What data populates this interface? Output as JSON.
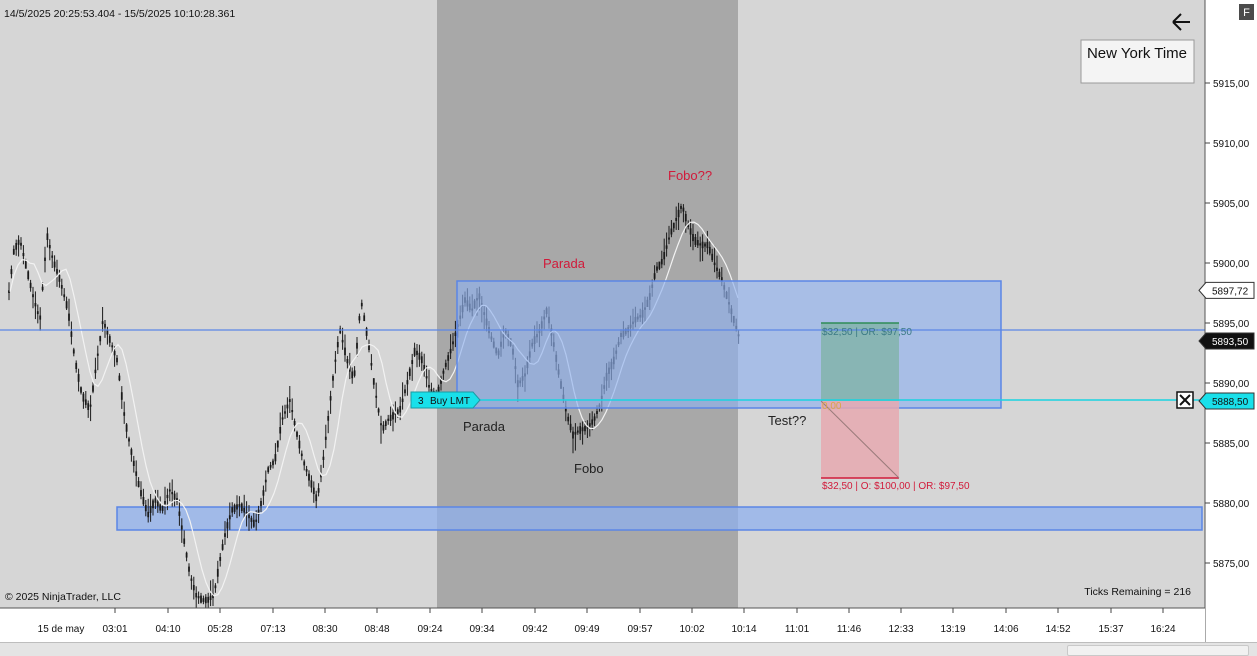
{
  "header": {
    "range_text": "14/5/2025 20:25:53.404 - 15/5/2025 10:10:28.361",
    "timezone_label": "New York Time",
    "panel_button": "F",
    "back_icon": "left-arrow-icon"
  },
  "footer": {
    "copyright": "© 2025 NinjaTrader, LLC",
    "ticks_remaining": "Ticks Remaining = 216"
  },
  "price_axis": {
    "ticks": [
      "5915,00",
      "5910,00",
      "5905,00",
      "5900,00",
      "5895,00",
      "5890,00",
      "5885,00",
      "5880,00",
      "5875,00"
    ],
    "markers": [
      {
        "label": "5897,72",
        "style": "outline",
        "value": 5897.72
      },
      {
        "label": "5893,50",
        "style": "dark",
        "value": 5893.5
      },
      {
        "label": "5888,50",
        "style": "cyan",
        "value": 5888.5
      }
    ]
  },
  "time_axis": {
    "labels": [
      "15 de may",
      "03:01",
      "04:10",
      "05:28",
      "07:13",
      "08:30",
      "08:48",
      "09:24",
      "09:34",
      "09:42",
      "09:49",
      "09:57",
      "10:02",
      "10:14",
      "11:01",
      "11:46",
      "12:33",
      "13:19",
      "14:06",
      "14:52",
      "15:37",
      "16:24"
    ]
  },
  "annotations": [
    {
      "text": "Parada",
      "color": "#d11a3a"
    },
    {
      "text": "Fobo??",
      "color": "#d11a3a"
    },
    {
      "text": "Parada",
      "color": "#222222"
    },
    {
      "text": "Fobo",
      "color": "#222222"
    },
    {
      "text": "Test??",
      "color": "#222222"
    }
  ],
  "order": {
    "quantity": "3",
    "type": "Buy LMT",
    "price": 5888.5
  },
  "risk_reward": {
    "target_label": "$32,50 | OR: $97,50",
    "entry_label": "0,00",
    "stop_label": "$32,50 | O: $100,00 | OR: $97,50"
  },
  "colors": {
    "background": "#d6d6d6",
    "session_shade": "#a8a8a8",
    "zone_fill": "#8fb0ee",
    "order_line": "#19d3e0",
    "alert_text": "#d11a3a",
    "target_fill": "#7fb3a7",
    "stop_fill": "#e6a9b0"
  }
}
